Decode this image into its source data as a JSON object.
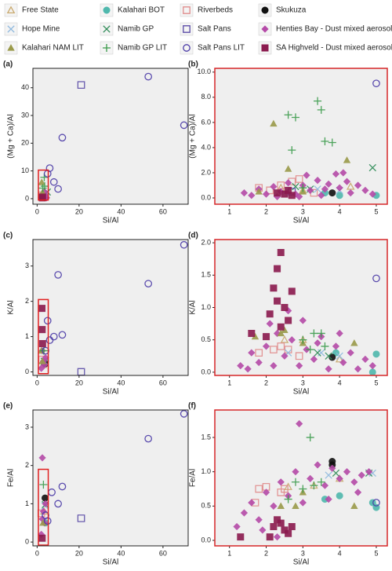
{
  "legend": [
    {
      "name": "Free State",
      "color": "#c9a96e",
      "marker": "open-triangle"
    },
    {
      "name": "Kalahari BOT",
      "color": "#4fb8ad",
      "marker": "filled-circle"
    },
    {
      "name": "Riverbeds",
      "color": "#e08c8c",
      "marker": "open-square"
    },
    {
      "name": "Skukuza",
      "color": "#111111",
      "marker": "filled-circle"
    },
    {
      "name": "Hope Mine",
      "color": "#8db8de",
      "marker": "x"
    },
    {
      "name": "Namib GP",
      "color": "#2e8b57",
      "marker": "x"
    },
    {
      "name": "Salt Pans",
      "color": "#5a4aa6",
      "marker": "open-square"
    },
    {
      "name": "Henties Bay - Dust mixed aerosols LIT",
      "color": "#b54aa8",
      "marker": "diamond"
    },
    {
      "name": "Kalahari NAM LIT",
      "color": "#9a9a4a",
      "marker": "filled-triangle"
    },
    {
      "name": "Namib GP LIT",
      "color": "#3a9a4a",
      "marker": "plus"
    },
    {
      "name": "Salt Pans LIT",
      "color": "#4a3aa6",
      "marker": "open-circle"
    },
    {
      "name": "SA Highveld - Dust mixed aerosols LIT",
      "color": "#8b1a4e",
      "marker": "filled-square"
    }
  ],
  "chart_data": [
    {
      "type": "scatter",
      "label": "(a)",
      "xlabel": "Si/Al",
      "ylabel": "(Mg + Ca)/Al",
      "xlim": [
        -2,
        72
      ],
      "ylim": [
        -2,
        47
      ],
      "xticks": [
        0,
        20,
        40,
        60
      ],
      "yticks": [
        0,
        10,
        20,
        30,
        40
      ],
      "series": [
        {
          "x": [
            2.8
          ],
          "values": [
            1.5
          ]
        },
        {
          "x": [
            4
          ],
          "values": [
            0.5
          ]
        },
        {
          "x": [
            2.5
          ],
          "values": [
            1.2
          ]
        },
        {
          "x": [
            3.8
          ],
          "values": [
            0.4
          ]
        },
        {
          "x": [
            3.4
          ],
          "values": [
            0.7
          ]
        },
        {
          "x": [
            4.9
          ],
          "values": [
            2.4
          ]
        },
        {
          "x": [
            21
          ],
          "values": [
            41
          ]
        },
        {
          "x": [
            2,
            2.5,
            3,
            3.5,
            4,
            4.5
          ],
          "values": [
            0.5,
            1.5,
            0.8,
            2.5,
            1.2,
            0.3
          ]
        },
        {
          "x": [
            2.2,
            2.6
          ],
          "values": [
            5.9,
            2.3
          ]
        },
        {
          "x": [
            3.4,
            3.6,
            2.7
          ],
          "values": [
            7.7,
            4.5,
            3.8
          ]
        },
        {
          "x": [
            53,
            70,
            12,
            6,
            8,
            10,
            5
          ],
          "values": [
            44,
            26.5,
            22,
            11,
            6,
            3.5,
            9
          ]
        },
        {
          "x": [
            2.5,
            2.6
          ],
          "values": [
            0.3,
            0.6
          ]
        }
      ]
    },
    {
      "type": "scatter",
      "label": "(b)",
      "xlabel": "Si/Al",
      "ylabel": "(Mg + Ca)/Al",
      "xlim": [
        0.6,
        5.3
      ],
      "ylim": [
        -0.5,
        10.3
      ],
      "xticks": [
        1,
        2,
        3,
        4,
        5
      ],
      "yticks": [
        {
          "value": 0,
          "label": "0.0"
        },
        {
          "value": 2,
          "label": "2.0"
        },
        {
          "value": 4,
          "label": "4.0"
        },
        {
          "value": 6,
          "label": "6.0"
        },
        {
          "value": 8,
          "label": "8.0"
        },
        {
          "value": 10,
          "label": "10.0"
        }
      ],
      "series": [
        {
          "x": [
            2.4,
            3.0,
            4.3
          ],
          "values": [
            0.8,
            0.6,
            0.9
          ]
        },
        {
          "x": [
            4.0,
            5.0,
            3.6
          ],
          "values": [
            0.2,
            0.2,
            0.4
          ]
        },
        {
          "x": [
            1.8,
            2.1,
            2.4,
            2.7,
            2.9,
            3.3
          ],
          "values": [
            0.8,
            0.6,
            1.0,
            1.3,
            1.5,
            0.4
          ]
        },
        {
          "x": [
            3.8
          ],
          "values": [
            0.4
          ]
        },
        {
          "x": [
            2.5,
            3.4,
            4.0
          ],
          "values": [
            0.4,
            0.7,
            0.6
          ]
        },
        {
          "x": [
            4.9,
            3.2,
            2.8
          ],
          "values": [
            2.4,
            0.7,
            0.9
          ]
        },
        {
          "x": [
            2.7
          ],
          "values": [
            0.5
          ]
        },
        {
          "x": [
            1.4,
            1.6,
            1.8,
            2.0,
            2.2,
            2.4,
            2.6,
            2.8,
            3.0,
            3.2,
            3.4,
            3.5,
            3.7,
            3.9,
            4.0,
            4.2,
            4.3,
            4.5,
            4.7,
            4.9,
            3.1,
            2.9,
            3.6,
            4.1,
            2.3
          ],
          "values": [
            0.4,
            0.2,
            0.7,
            0.3,
            0.9,
            0.5,
            1.2,
            0.3,
            1.0,
            0.6,
            1.4,
            0.2,
            1.1,
            1.9,
            0.8,
            1.3,
            0.4,
            1.0,
            0.6,
            0.3,
            1.8,
            0.1,
            0.7,
            2.0,
            0.1
          ]
        },
        {
          "x": [
            2.2,
            2.6,
            1.8,
            3.0,
            4.2
          ],
          "values": [
            5.9,
            2.3,
            0.5,
            0.5,
            3.0
          ]
        },
        {
          "x": [
            2.6,
            2.8,
            3.4,
            3.5,
            3.6,
            3.8,
            2.7,
            3.0
          ],
          "values": [
            6.6,
            6.4,
            7.7,
            7.0,
            4.5,
            4.4,
            3.8,
            0.8
          ]
        },
        {
          "x": [
            5.0
          ],
          "values": [
            9.1
          ]
        },
        {
          "x": [
            2.5,
            2.6,
            2.3,
            2.7
          ],
          "values": [
            0.3,
            0.6,
            0.4,
            0.2
          ]
        }
      ]
    },
    {
      "type": "scatter",
      "label": "(c)",
      "xlabel": "Si/Al",
      "ylabel": "K/Al",
      "xlim": [
        -2,
        72
      ],
      "ylim": [
        -0.1,
        3.75
      ],
      "xticks": [
        0,
        20,
        40,
        60
      ],
      "yticks": [
        0,
        1,
        2,
        3
      ],
      "series": [
        {
          "x": [
            2.8
          ],
          "values": [
            0.2
          ]
        },
        {
          "x": [
            4
          ],
          "values": [
            0.3
          ]
        },
        {
          "x": [
            2.4
          ],
          "values": [
            0.35
          ]
        },
        {
          "x": [
            3.8
          ],
          "values": [
            0.23
          ]
        },
        {
          "x": [
            3.5
          ],
          "values": [
            0.3
          ]
        },
        {
          "x": [
            3.4
          ],
          "values": [
            0.3
          ]
        },
        {
          "x": [
            21
          ],
          "values": [
            0
          ]
        },
        {
          "x": [
            2,
            3,
            2.5,
            3.5,
            4
          ],
          "values": [
            0.1,
            0.3,
            0.6,
            0.2,
            0.4
          ]
        },
        {
          "x": [
            2,
            2.5
          ],
          "values": [
            0.6,
            0.3
          ]
        },
        {
          "x": [
            3.2
          ],
          "values": [
            0.6
          ]
        },
        {
          "x": [
            70,
            53,
            10,
            12,
            8,
            6,
            5,
            4
          ],
          "values": [
            3.6,
            2.5,
            2.75,
            1.05,
            1.0,
            0.9,
            1.45,
            0.6
          ]
        },
        {
          "x": [
            2.3,
            2.4,
            2.6
          ],
          "values": [
            1.8,
            1.2,
            0.8
          ]
        }
      ]
    },
    {
      "type": "scatter",
      "label": "(d)",
      "xlabel": "Si/Al",
      "ylabel": "K/Al",
      "xlim": [
        0.6,
        5.3
      ],
      "ylim": [
        -0.05,
        2.05
      ],
      "xticks": [
        1,
        2,
        3,
        4,
        5
      ],
      "yticks": [
        {
          "value": 0,
          "label": "0.0"
        },
        {
          "value": 0.5,
          "label": "0.5"
        },
        {
          "value": 1,
          "label": "1.0"
        },
        {
          "value": 1.5,
          "label": "1.5"
        },
        {
          "value": 2,
          "label": "2.0"
        }
      ],
      "series": [
        {
          "x": [
            2.5,
            3.0,
            4.0
          ],
          "values": [
            0.5,
            0.5,
            0.2
          ]
        },
        {
          "x": [
            5.0,
            4.9,
            3.9
          ],
          "values": [
            0.28,
            0.0,
            0.3
          ]
        },
        {
          "x": [
            1.8,
            2.2,
            2.4,
            2.6,
            2.9
          ],
          "values": [
            0.3,
            0.35,
            0.4,
            0.35,
            0.25
          ]
        },
        {
          "x": [
            3.8
          ],
          "values": [
            0.23
          ]
        },
        {
          "x": [
            2.6,
            3.5,
            4.0
          ],
          "values": [
            0.3,
            0.3,
            0.25
          ]
        },
        {
          "x": [
            3.4,
            3.7
          ],
          "values": [
            0.3,
            0.25
          ]
        },
        {
          "x": [],
          "values": []
        },
        {
          "x": [
            1.3,
            1.5,
            1.6,
            1.8,
            2.0,
            2.2,
            2.3,
            2.5,
            2.7,
            2.9,
            3.0,
            3.1,
            3.3,
            3.5,
            3.7,
            3.9,
            4.1,
            4.3,
            4.5,
            4.7,
            4.9,
            2.6,
            3.4,
            4.0,
            2.1
          ],
          "values": [
            0.1,
            0.05,
            0.3,
            0.15,
            0.4,
            0.1,
            0.6,
            0.25,
            0.5,
            0.1,
            0.8,
            0.35,
            0.2,
            0.55,
            0.05,
            0.4,
            0.15,
            0.3,
            0.05,
            0.2,
            0.1,
            0.95,
            0.45,
            0.6,
            0.75
          ]
        },
        {
          "x": [
            1.7,
            2.4,
            2.5,
            3.0,
            4.4
          ],
          "values": [
            0.55,
            0.6,
            0.65,
            0.45,
            0.45
          ]
        },
        {
          "x": [
            3.3,
            3.5,
            3.2,
            3.0,
            3.6
          ],
          "values": [
            0.6,
            0.6,
            0.35,
            0.5,
            0.4
          ]
        },
        {
          "x": [
            5.0
          ],
          "values": [
            1.45
          ]
        },
        {
          "x": [
            2.4,
            2.3,
            2.2,
            2.3,
            2.5,
            2.1,
            2.6,
            2.0,
            2.4,
            1.6,
            2.7
          ],
          "values": [
            1.85,
            1.6,
            1.3,
            1.1,
            1.0,
            0.9,
            0.8,
            0.55,
            0.7,
            0.6,
            1.25
          ]
        }
      ]
    },
    {
      "type": "scatter",
      "label": "(e)",
      "xlabel": "Si/Al",
      "ylabel": "Fe/Al",
      "xlim": [
        -2,
        72
      ],
      "ylim": [
        -0.1,
        3.45
      ],
      "xticks": [
        0,
        20,
        40,
        60
      ],
      "yticks": [
        0,
        1,
        2,
        3
      ],
      "series": [
        {
          "x": [
            3.3
          ],
          "values": [
            0.8
          ]
        },
        {
          "x": [
            4
          ],
          "values": [
            0.5
          ]
        },
        {
          "x": [
            2
          ],
          "values": [
            0.75
          ]
        },
        {
          "x": [
            3.8
          ],
          "values": [
            1.15
          ]
        },
        {
          "x": [
            3.7
          ],
          "values": [
            0.95
          ]
        },
        {
          "x": [
            3.9
          ],
          "values": [
            0.98
          ]
        },
        {
          "x": [
            21
          ],
          "values": [
            0.62
          ]
        },
        {
          "x": [
            2.5,
            2,
            3,
            3.5,
            4,
            2.5
          ],
          "values": [
            2.2,
            0.2,
            0.8,
            0.5,
            1.0,
            0.6
          ]
        },
        {
          "x": [
            2.8
          ],
          "values": [
            0.5
          ]
        },
        {
          "x": [
            3
          ],
          "values": [
            1.5
          ]
        },
        {
          "x": [
            70,
            53,
            12,
            10,
            7,
            5,
            4
          ],
          "values": [
            3.35,
            2.7,
            1.45,
            1.0,
            1.3,
            0.55,
            0.7
          ]
        },
        {
          "x": [
            2.4
          ],
          "values": [
            0.1
          ]
        }
      ]
    },
    {
      "type": "scatter",
      "label": "(f)",
      "xlabel": "Si/Al",
      "ylabel": "Fe/Al",
      "xlim": [
        0.6,
        5.3
      ],
      "ylim": [
        -0.08,
        1.9
      ],
      "xticks": [
        1,
        2,
        3,
        4,
        5
      ],
      "yticks": [
        {
          "value": 0,
          "label": "0.0"
        },
        {
          "value": 0.5,
          "label": "0.5"
        },
        {
          "value": 1,
          "label": "1.0"
        },
        {
          "value": 1.5,
          "label": "1.5"
        }
      ],
      "series": [
        {
          "x": [
            2.6,
            3.3,
            4.0
          ],
          "values": [
            0.78,
            0.8,
            0.9
          ]
        },
        {
          "x": [
            4.0,
            4.9,
            5.0,
            3.6
          ],
          "values": [
            0.65,
            0.55,
            0.48,
            0.6
          ]
        },
        {
          "x": [
            1.7,
            1.8,
            2.0,
            2.4,
            2.5
          ],
          "values": [
            0.55,
            0.75,
            0.78,
            0.7,
            0.75
          ]
        },
        {
          "x": [
            3.8,
            3.8
          ],
          "values": [
            1.15,
            1.1
          ]
        },
        {
          "x": [
            3.7,
            4.9
          ],
          "values": [
            0.95,
            0.98
          ]
        },
        {
          "x": [
            3.9,
            4.8
          ],
          "values": [
            0.98,
            0.98
          ]
        },
        {
          "x": [],
          "values": []
        },
        {
          "x": [
            1.2,
            1.4,
            1.6,
            1.8,
            2.0,
            2.2,
            2.4,
            2.6,
            2.8,
            3.0,
            3.2,
            3.4,
            3.6,
            3.8,
            4.0,
            4.2,
            4.4,
            4.6,
            4.8,
            2.9,
            1.9,
            2.3,
            3.7,
            4.5
          ],
          "values": [
            0.2,
            0.4,
            0.55,
            0.3,
            0.7,
            0.5,
            0.85,
            0.65,
            1.0,
            0.55,
            0.9,
            1.1,
            0.8,
            1.05,
            0.9,
            1.0,
            0.85,
            0.95,
            1.0,
            1.7,
            0.15,
            0.05,
            0.6,
            0.7
          ]
        },
        {
          "x": [
            2.4,
            2.8,
            3.0,
            4.4
          ],
          "values": [
            0.5,
            0.5,
            0.7,
            0.5
          ]
        },
        {
          "x": [
            3.2,
            2.8,
            3.0,
            3.5,
            2.6,
            3.3
          ],
          "values": [
            1.5,
            0.85,
            0.75,
            0.85,
            0.6,
            0.8
          ]
        },
        {
          "x": [
            5.0
          ],
          "values": [
            0.55
          ]
        },
        {
          "x": [
            2.2,
            2.4,
            2.5,
            2.3,
            2.6,
            2.1,
            1.3,
            2.7
          ],
          "values": [
            0.2,
            0.25,
            0.15,
            0.3,
            0.1,
            0.05,
            0.05,
            0.2
          ]
        }
      ]
    }
  ]
}
